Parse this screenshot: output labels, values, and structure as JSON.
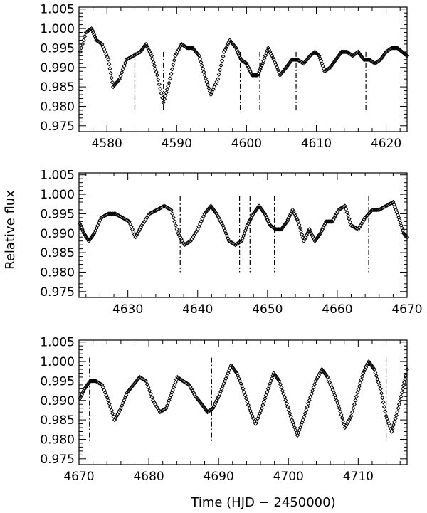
{
  "figure": {
    "ylabel": "Relative flux",
    "xlabel": "Time (HJD − 2450000)"
  },
  "chart_data": [
    {
      "type": "scatter",
      "ylabel": "Relative flux",
      "xlim": [
        4576,
        4623
      ],
      "ylim": [
        0.9735,
        1.0055
      ],
      "yticks": [
        0.975,
        0.98,
        0.985,
        0.99,
        0.995,
        1.0,
        1.005
      ],
      "ytick_labels": [
        "0.975",
        "0.980",
        "0.985",
        "0.990",
        "0.995",
        "1.000",
        "1.005"
      ],
      "xticks": [
        4580,
        4590,
        4600,
        4610,
        4620
      ],
      "xtick_labels": [
        "4580",
        "4590",
        "4600",
        "4610",
        "4620"
      ],
      "markers": [
        4584.0,
        4588.1,
        4599.1,
        4601.9,
        4607.1,
        4617.1
      ],
      "marker_range": [
        0.979,
        0.994
      ],
      "series": [
        {
          "marker": "open-diamond",
          "color": "#000000",
          "x": [
            4576.0,
            4577.0,
            4577.8,
            4578.5,
            4579.3,
            4580.2,
            4580.9,
            4581.8,
            4582.8,
            4583.8,
            4584.8,
            4585.6,
            4586.4,
            4587.2,
            4588.1,
            4588.9,
            4589.8,
            4590.7,
            4591.5,
            4592.3,
            4593.2,
            4594.0,
            4594.9,
            4595.9,
            4596.8,
            4597.6,
            4598.5,
            4599.2,
            4600.0,
            4600.8,
            4601.6,
            4602.3,
            4603.1,
            4603.9,
            4604.8,
            4605.7,
            4606.5,
            4607.3,
            4608.2,
            4609.1,
            4609.8,
            4610.4,
            4611.2,
            4612.0,
            4612.8,
            4613.6,
            4614.4,
            4615.2,
            4616.0,
            4616.8,
            4617.6,
            4618.4,
            4619.2,
            4620.0,
            4620.8,
            4621.6,
            4622.3,
            4623.0
          ],
          "y": [
            0.993,
            0.999,
            1.0,
            0.997,
            0.996,
            0.992,
            0.985,
            0.987,
            0.992,
            0.993,
            0.994,
            0.996,
            0.993,
            0.988,
            0.981,
            0.986,
            0.993,
            0.996,
            0.995,
            0.995,
            0.993,
            0.988,
            0.983,
            0.987,
            0.994,
            0.997,
            0.995,
            0.992,
            0.991,
            0.988,
            0.988,
            0.991,
            0.995,
            0.992,
            0.988,
            0.99,
            0.992,
            0.992,
            0.991,
            0.993,
            0.994,
            0.993,
            0.989,
            0.99,
            0.992,
            0.994,
            0.994,
            0.993,
            0.994,
            0.992,
            0.992,
            0.991,
            0.992,
            0.994,
            0.995,
            0.995,
            0.994,
            0.993
          ]
        }
      ]
    },
    {
      "type": "scatter",
      "ylabel": "Relative flux",
      "xlim": [
        4623,
        4670
      ],
      "ylim": [
        0.9735,
        1.0055
      ],
      "yticks": [
        0.975,
        0.98,
        0.985,
        0.99,
        0.995,
        1.0,
        1.005
      ],
      "ytick_labels": [
        "0.975",
        "0.980",
        "0.985",
        "0.990",
        "0.995",
        "1.000",
        "1.005"
      ],
      "xticks": [
        4630,
        4640,
        4650,
        4660,
        4670
      ],
      "xtick_labels": [
        "4630",
        "4640",
        "4650",
        "4660",
        "4670"
      ],
      "markers": [
        4637.5,
        4646.0,
        4647.5,
        4651.0,
        4664.5
      ],
      "marker_range": [
        0.98,
        0.9995
      ],
      "series": [
        {
          "marker": "open-diamond",
          "color": "#000000",
          "x": [
            4623.0,
            4623.7,
            4624.4,
            4625.2,
            4626.2,
            4627.2,
            4628.2,
            4629.2,
            4630.2,
            4631.1,
            4632.0,
            4633.1,
            4634.2,
            4635.2,
            4636.2,
            4637.2,
            4638.1,
            4639.0,
            4640.0,
            4641.0,
            4641.9,
            4642.7,
            4643.6,
            4644.5,
            4645.4,
            4646.3,
            4647.1,
            4648.0,
            4648.8,
            4649.6,
            4650.4,
            4651.2,
            4652.0,
            4652.8,
            4653.6,
            4654.4,
            4655.2,
            4656.0,
            4656.8,
            4657.6,
            4658.4,
            4659.3,
            4660.2,
            4661.1,
            4662.0,
            4663.0,
            4664.0,
            4665.0,
            4666.0,
            4667.0,
            4668.0,
            4668.8,
            4669.5,
            4670.0
          ],
          "y": [
            0.993,
            0.99,
            0.988,
            0.99,
            0.994,
            0.995,
            0.995,
            0.994,
            0.993,
            0.989,
            0.992,
            0.995,
            0.996,
            0.997,
            0.996,
            0.99,
            0.987,
            0.988,
            0.991,
            0.995,
            0.997,
            0.995,
            0.992,
            0.988,
            0.987,
            0.988,
            0.992,
            0.995,
            0.997,
            0.995,
            0.992,
            0.991,
            0.991,
            0.993,
            0.996,
            0.993,
            0.988,
            0.991,
            0.988,
            0.99,
            0.993,
            0.993,
            0.996,
            0.997,
            0.992,
            0.991,
            0.994,
            0.996,
            0.996,
            0.997,
            0.998,
            0.994,
            0.99,
            0.989
          ]
        }
      ]
    },
    {
      "type": "scatter",
      "ylabel": "Relative flux",
      "xlabel": "Time (HJD − 2450000)",
      "xlim": [
        4670,
        4717
      ],
      "ylim": [
        0.9735,
        1.0055
      ],
      "yticks": [
        0.975,
        0.98,
        0.985,
        0.99,
        0.995,
        1.0,
        1.005
      ],
      "ytick_labels": [
        "0.975",
        "0.980",
        "0.985",
        "0.990",
        "0.995",
        "1.000",
        "1.005"
      ],
      "xticks": [
        4670,
        4680,
        4690,
        4700,
        4710
      ],
      "xtick_labels": [
        "4670",
        "4680",
        "4690",
        "4700",
        "4710"
      ],
      "markers": [
        4671.5,
        4689.0,
        4714.0
      ],
      "marker_range": [
        0.979,
        1.001
      ],
      "series": [
        {
          "marker": "open-diamond",
          "color": "#000000",
          "x": [
            4670.0,
            4670.8,
            4671.6,
            4672.4,
            4673.3,
            4674.2,
            4675.1,
            4676.0,
            4676.9,
            4677.8,
            4678.7,
            4679.6,
            4680.6,
            4681.6,
            4682.5,
            4683.3,
            4684.1,
            4684.9,
            4685.8,
            4686.7,
            4687.6,
            4688.4,
            4689.2,
            4690.0,
            4690.9,
            4691.8,
            4692.6,
            4693.5,
            4694.4,
            4695.3,
            4696.2,
            4697.1,
            4697.9,
            4698.7,
            4699.6,
            4700.5,
            4701.3,
            4702.1,
            4703.0,
            4703.9,
            4704.8,
            4705.6,
            4706.5,
            4707.3,
            4708.1,
            4709.0,
            4709.9,
            4710.7,
            4711.5,
            4712.3,
            4713.2,
            4714.0,
            4714.8,
            4715.6,
            4716.4,
            4717.0
          ],
          "y": [
            0.99,
            0.993,
            0.995,
            0.995,
            0.994,
            0.99,
            0.985,
            0.988,
            0.992,
            0.994,
            0.996,
            0.995,
            0.99,
            0.987,
            0.988,
            0.992,
            0.996,
            0.995,
            0.994,
            0.991,
            0.989,
            0.987,
            0.988,
            0.991,
            0.995,
            0.999,
            0.997,
            0.993,
            0.988,
            0.984,
            0.988,
            0.993,
            0.997,
            0.995,
            0.99,
            0.985,
            0.981,
            0.985,
            0.99,
            0.995,
            0.998,
            0.996,
            0.992,
            0.988,
            0.983,
            0.986,
            0.992,
            0.997,
            1.0,
            0.998,
            0.993,
            0.986,
            0.982,
            0.987,
            0.993,
            0.998
          ]
        }
      ]
    }
  ]
}
